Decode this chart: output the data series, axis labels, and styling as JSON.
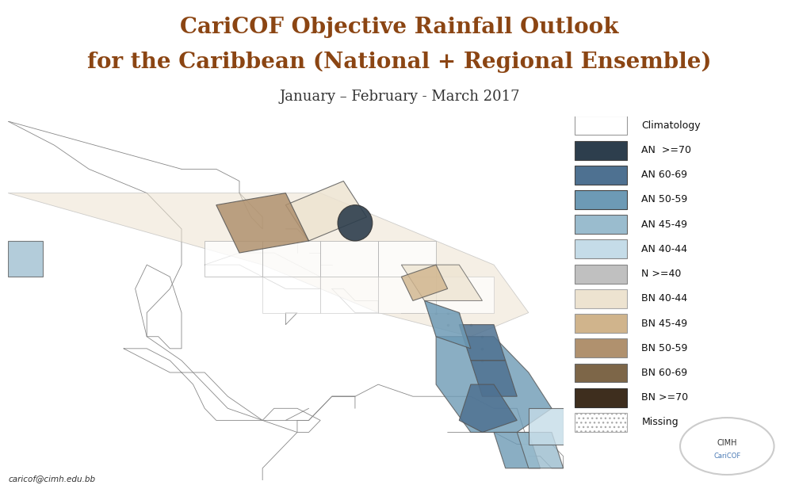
{
  "title_line1": "CariCOF Objective Rainfall Outlook",
  "title_line2": "for the Caribbean (National + Regional Ensemble)",
  "subtitle": "January – February - March 2017",
  "title_color": "#8B4513",
  "subtitle_color": "#333333",
  "title_fontsize": 20,
  "subtitle_fontsize": 13,
  "background_color": "#ffffff",
  "legend_items": [
    {
      "label": "Climatology",
      "color": "#ffffff",
      "edge": "#999999",
      "hatch": null
    },
    {
      "label": "AN  >=70",
      "color": "#2d3e4d",
      "edge": "#444444",
      "hatch": null
    },
    {
      "label": "AN 60-69",
      "color": "#4e7191",
      "edge": "#444444",
      "hatch": null
    },
    {
      "label": "AN 50-59",
      "color": "#6d9ab5",
      "edge": "#444444",
      "hatch": null
    },
    {
      "label": "AN 45-49",
      "color": "#9abcce",
      "edge": "#666666",
      "hatch": null
    },
    {
      "label": "AN 40-44",
      "color": "#c5dce8",
      "edge": "#888888",
      "hatch": null
    },
    {
      "label": "N >=40",
      "color": "#c0c0c0",
      "edge": "#888888",
      "hatch": null
    },
    {
      "label": "BN 40-44",
      "color": "#ede3d0",
      "edge": "#aaaaaa",
      "hatch": null
    },
    {
      "label": "BN 45-49",
      "color": "#d0b48c",
      "edge": "#999999",
      "hatch": null
    },
    {
      "label": "BN 50-59",
      "color": "#b0916e",
      "edge": "#888888",
      "hatch": null
    },
    {
      "label": "BN 60-69",
      "color": "#7d6648",
      "edge": "#666666",
      "hatch": null
    },
    {
      "label": "BN >=70",
      "color": "#3e2e1e",
      "edge": "#333333",
      "hatch": null
    },
    {
      "label": "Missing",
      "color": "#ffffff",
      "edge": "#aaaaaa",
      "hatch": "..."
    }
  ],
  "email_text": "caricof@cimh.edu.bb",
  "coast_color": "#888888",
  "coast_lw": 0.6,
  "region_lw": 0.8,
  "region_edge": "#555555"
}
